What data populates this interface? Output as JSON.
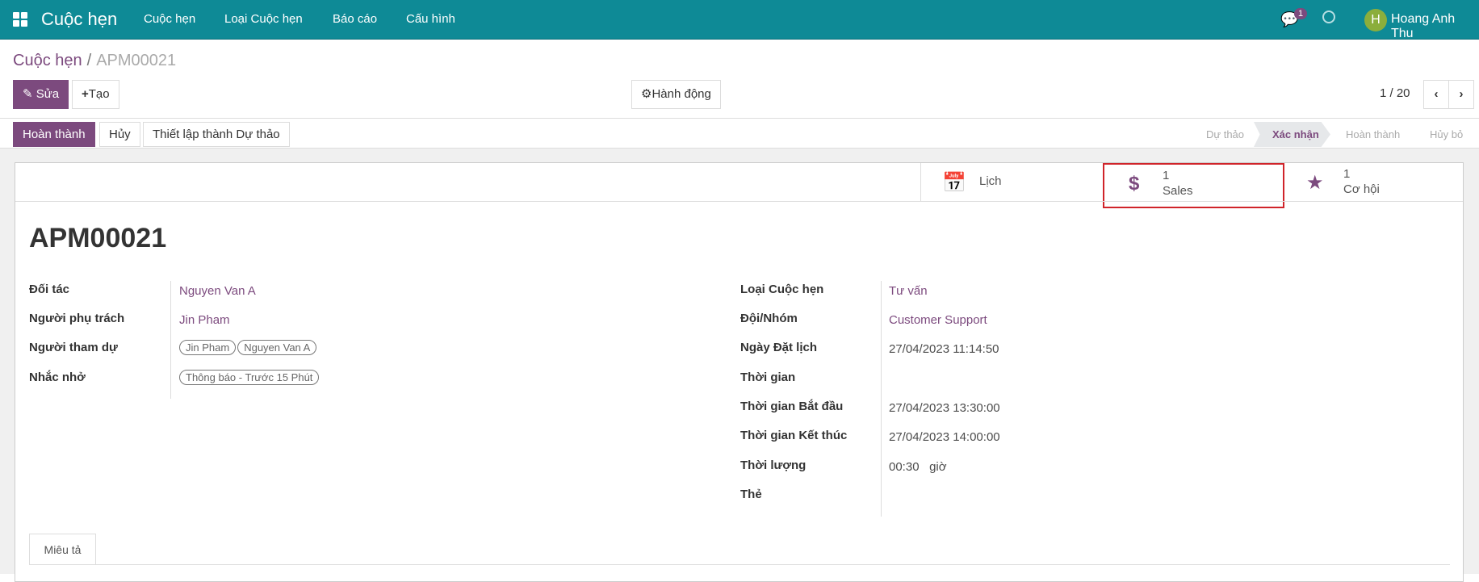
{
  "navbar": {
    "app_title": "Cuộc hẹn",
    "menu": [
      "Cuộc hẹn",
      "Loại Cuộc hẹn",
      "Báo cáo",
      "Cấu hình"
    ],
    "message_count": "1",
    "user_initial": "H",
    "user_name": "Hoang Anh Thu",
    "bg_color": "#0e8a96"
  },
  "breadcrumb": {
    "parent": "Cuộc hẹn",
    "separator": "/",
    "current": "APM00021"
  },
  "toolbar": {
    "edit": "Sửa",
    "create": "Tạo",
    "action": "Hành động",
    "pager": "1 / 20"
  },
  "actions": {
    "done": "Hoàn thành",
    "cancel": "Hủy",
    "set_draft": "Thiết lập thành Dự thảo"
  },
  "statusbar": {
    "stages": [
      "Dự thảo",
      "Xác nhận",
      "Hoàn thành",
      "Hủy bỏ"
    ],
    "active": "Xác nhận"
  },
  "smart_buttons": {
    "calendar": "Lịch",
    "sales_count": "1",
    "sales": "Sales",
    "opp_count": "1",
    "opp": "Cơ hội"
  },
  "record": {
    "name": "APM00021",
    "left": [
      {
        "label": "Đối tác",
        "value": "Nguyen Van A"
      },
      {
        "label": "Người phụ trách",
        "value": "Jin Pham"
      },
      {
        "label": "Người tham dự",
        "tags": [
          "Jin Pham",
          "Nguyen Van A"
        ]
      },
      {
        "label": "Nhắc nhở",
        "tags": [
          "Thông báo - Trước 15 Phút"
        ]
      }
    ],
    "right": [
      {
        "label": "Loại Cuộc hẹn",
        "value": "Tư vấn"
      },
      {
        "label": "Đội/Nhóm",
        "value": "Customer Support"
      },
      {
        "label": "Ngày Đặt lịch",
        "value": "27/04/2023 11:14:50"
      },
      {
        "label": "Thời gian",
        "value": ""
      },
      {
        "label": "Thời gian Bắt đầu",
        "value": "27/04/2023 13:30:00"
      },
      {
        "label": "Thời gian Kết thúc",
        "value": "27/04/2023 14:00:00"
      },
      {
        "label": "Thời lượng",
        "value": "00:30",
        "unit": "giờ"
      },
      {
        "label": "Thẻ",
        "value": ""
      }
    ]
  },
  "tabs": [
    "Miêu tả"
  ],
  "accent_color": "#7c4a7e",
  "highlight_color": "#d0242a"
}
